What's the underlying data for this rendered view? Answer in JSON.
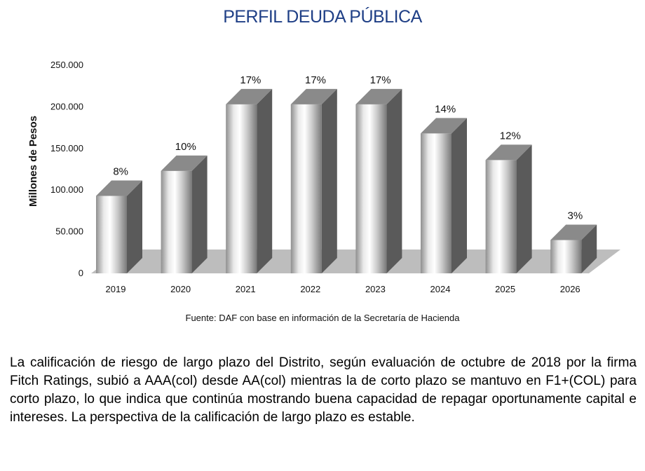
{
  "chart_title": "PERFIL DEUDA PÚBLICA",
  "chart_data": {
    "type": "bar",
    "title": "PERFIL DEUDA PÚBLICA",
    "xlabel": "",
    "ylabel": "Millones de Pesos",
    "categories": [
      "2019",
      "2020",
      "2021",
      "2022",
      "2023",
      "2024",
      "2025",
      "2026"
    ],
    "values": [
      93000,
      123000,
      203000,
      203000,
      203000,
      168000,
      136000,
      40000
    ],
    "data_labels": [
      "8%",
      "10%",
      "17%",
      "17%",
      "17%",
      "14%",
      "12%",
      "3%"
    ],
    "ylim": [
      0,
      250000
    ],
    "yticks": [
      0,
      50000,
      100000,
      150000,
      200000,
      250000
    ],
    "ytick_labels": [
      "0",
      "50.000",
      "100.000",
      "150.000",
      "200.000",
      "250.000"
    ],
    "style": "3d-cylinder",
    "grid": false,
    "legend": "none"
  },
  "source_note": "Fuente: DAF con base en información de la Secretaría de Hacienda",
  "paragraph": "La calificación de riesgo de largo plazo del Distrito, según evaluación de octubre de 2018 por la firma Fitch Ratings, subió a AAA(col) desde AA(col) mientras la de corto plazo se mantuvo en F1+(COL) para corto plazo, lo que indica que continúa mostrando buena capacidad de repagar oportunamente capital e intereses. La perspectiva de la calificación de largo plazo es estable.",
  "colors": {
    "title": "#1f3f86",
    "floor": "#bdbdbd",
    "bar_side": "#5a5a5a",
    "bar_top": "#8a8a8a"
  }
}
